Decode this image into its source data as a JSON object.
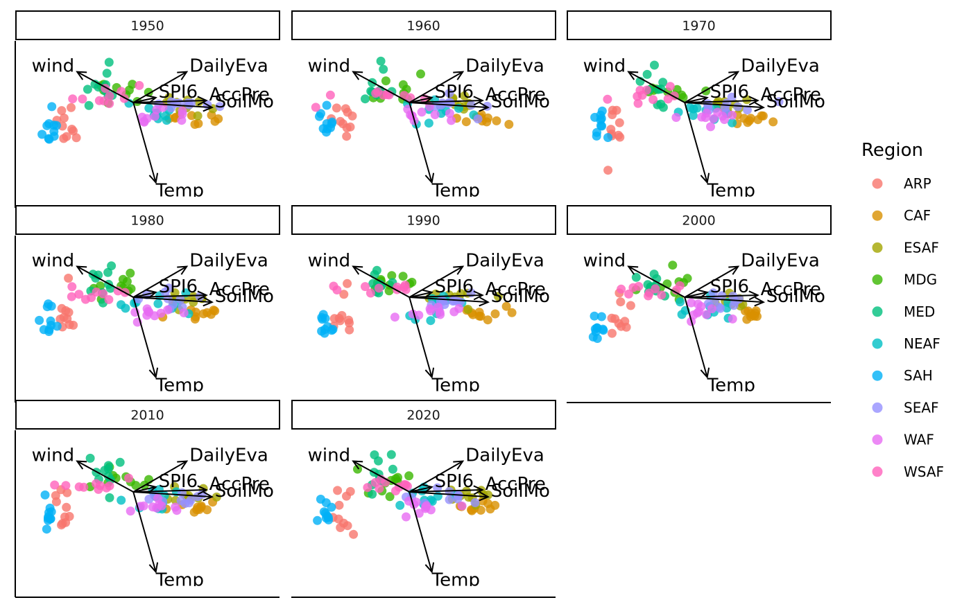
{
  "chart_data": {
    "type": "scatter",
    "subtype": "faceted PCA biplot",
    "facet_years": [
      "1950",
      "1960",
      "1970",
      "1980",
      "1990",
      "2000",
      "2010",
      "2020"
    ],
    "legend": {
      "title": "Region",
      "position": "right",
      "entries": [
        {
          "name": "ARP",
          "color": "#F8766D"
        },
        {
          "name": "CAF",
          "color": "#D89000"
        },
        {
          "name": "ESAF",
          "color": "#A3A500"
        },
        {
          "name": "MDG",
          "color": "#39B600"
        },
        {
          "name": "MED",
          "color": "#00BF7D"
        },
        {
          "name": "NEAF",
          "color": "#00BFC4"
        },
        {
          "name": "SAH",
          "color": "#00B0F6"
        },
        {
          "name": "SEAF",
          "color": "#9590FF"
        },
        {
          "name": "WAF",
          "color": "#E76BF3"
        },
        {
          "name": "WSAF",
          "color": "#FF62BC"
        }
      ]
    },
    "loadings": [
      {
        "name": "wind",
        "label": "wind",
        "x": -1.0,
        "y": 0.75
      },
      {
        "name": "DailyEvap",
        "label": "DailyEva",
        "x": 0.95,
        "y": 0.75
      },
      {
        "name": "SPI6",
        "label": "SPI6",
        "x": 0.4,
        "y": 0.12
      },
      {
        "name": "AccPrec",
        "label": "AccPre",
        "x": 1.3,
        "y": 0.05
      },
      {
        "name": "SoilMoist",
        "label": "SoilMo",
        "x": 1.4,
        "y": -0.12
      },
      {
        "name": "Temp",
        "label": "Temp",
        "x": 0.4,
        "y": -1.95
      }
    ],
    "region_clusters": [
      {
        "name": "ARP",
        "cx": -1.2,
        "cy": -0.5,
        "sx": 0.2,
        "sy": 0.6
      },
      {
        "name": "CAF",
        "cx": 1.2,
        "cy": -0.4,
        "sx": 0.45,
        "sy": 0.15
      },
      {
        "name": "ESAF",
        "cx": 0.9,
        "cy": -0.05,
        "sx": 0.45,
        "sy": 0.2
      },
      {
        "name": "MDG",
        "cx": -0.3,
        "cy": 0.3,
        "sx": 0.55,
        "sy": 0.3
      },
      {
        "name": "MED",
        "cx": -0.55,
        "cy": 0.35,
        "sx": 0.25,
        "sy": 0.55
      },
      {
        "name": "NEAF",
        "cx": 0.35,
        "cy": -0.2,
        "sx": 0.55,
        "sy": 0.3
      },
      {
        "name": "SAH",
        "cx": -1.5,
        "cy": -0.6,
        "sx": 0.15,
        "sy": 0.4
      },
      {
        "name": "SEAF",
        "cx": 0.75,
        "cy": -0.1,
        "sx": 0.55,
        "sy": 0.2
      },
      {
        "name": "WAF",
        "cx": 0.3,
        "cy": -0.35,
        "sx": 0.45,
        "sy": 0.2
      },
      {
        "name": "WSAF",
        "cx": -0.5,
        "cy": 0.15,
        "sx": 0.65,
        "sy": 0.18
      }
    ],
    "points_per_region": 10,
    "x_range": [
      -2.1,
      2.6
    ],
    "y_range": [
      -2.5,
      1.25
    ],
    "grid": false,
    "point_alpha": 0.8
  }
}
